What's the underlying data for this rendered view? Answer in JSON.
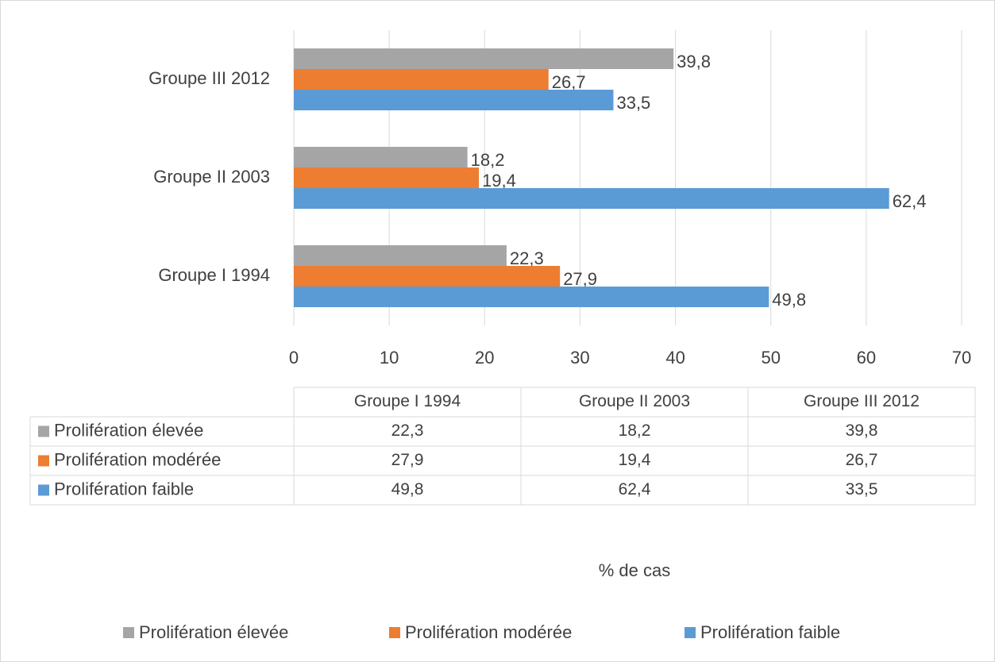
{
  "chart_data": {
    "type": "hbar",
    "categories": [
      "Groupe I 1994",
      "Groupe II 2003",
      "Groupe III 2012"
    ],
    "series": [
      {
        "name": "Prolifération élevée",
        "color": "#a5a5a5",
        "values": [
          22.3,
          18.2,
          39.8
        ],
        "value_labels": [
          "22,3",
          "18,2",
          "39,8"
        ]
      },
      {
        "name": "Prolifération modérée",
        "color": "#ed7d31",
        "values": [
          27.9,
          19.4,
          26.7
        ],
        "value_labels": [
          "27,9",
          "19,4",
          "26,7"
        ]
      },
      {
        "name": "Prolifération faible",
        "color": "#5b9bd5",
        "values": [
          49.8,
          62.4,
          33.5
        ],
        "value_labels": [
          "49,8",
          "62,4",
          "33,5"
        ]
      }
    ],
    "xlim": [
      0,
      70
    ],
    "xticks": [
      0,
      10,
      20,
      30,
      40,
      50,
      60,
      70
    ],
    "xlabel": "% de cas",
    "grid": true,
    "legend": "bottom",
    "data_table": true
  }
}
